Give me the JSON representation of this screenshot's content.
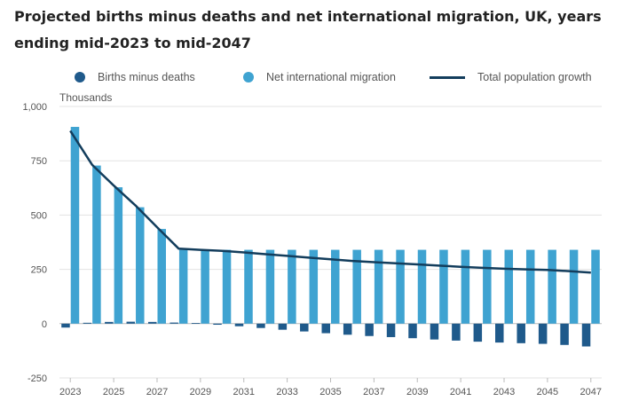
{
  "title": "Projected births minus deaths and net international migration, UK, years ending mid-2023 to mid-2047",
  "legend": {
    "births": "Births minus deaths",
    "migration": "Net international migration",
    "total": "Total population growth"
  },
  "colors": {
    "births": "#1f5a8b",
    "migration": "#3fa3d1",
    "total": "#133d5c",
    "grid": "#e3e3e3",
    "zero": "#bbbbbb"
  },
  "chart_data": {
    "type": "bar",
    "ylabel": "Thousands",
    "ylim": [
      -250,
      1000
    ],
    "yticks": [
      -250,
      0,
      250,
      500,
      750,
      1000
    ],
    "ytick_labels": [
      "-250",
      "0",
      "250",
      "500",
      "750",
      "1,000"
    ],
    "x": [
      2023,
      2024,
      2025,
      2026,
      2027,
      2028,
      2029,
      2030,
      2031,
      2032,
      2033,
      2034,
      2035,
      2036,
      2037,
      2038,
      2039,
      2040,
      2041,
      2042,
      2043,
      2044,
      2045,
      2046,
      2047
    ],
    "xtick_labels": [
      "2023",
      "2025",
      "2027",
      "2029",
      "2031",
      "2033",
      "2035",
      "2037",
      "2039",
      "2041",
      "2043",
      "2045",
      "2047"
    ],
    "series": [
      {
        "name": "Births minus deaths",
        "type": "bar",
        "values": [
          -18,
          4,
          8,
          9,
          8,
          5,
          0,
          -5,
          -12,
          -20,
          -28,
          -36,
          -44,
          -51,
          -57,
          -62,
          -67,
          -73,
          -78,
          -83,
          -87,
          -90,
          -93,
          -98,
          -105
        ]
      },
      {
        "name": "Net international migration",
        "type": "bar",
        "values": [
          906,
          728,
          628,
          536,
          436,
          340,
          340,
          340,
          340,
          340,
          340,
          340,
          340,
          340,
          340,
          340,
          340,
          340,
          340,
          340,
          340,
          340,
          340,
          340,
          340
        ]
      },
      {
        "name": "Total population growth",
        "type": "line",
        "values": [
          888,
          732,
          636,
          545,
          444,
          345,
          340,
          335,
          328,
          320,
          312,
          304,
          296,
          289,
          283,
          278,
          273,
          267,
          262,
          257,
          253,
          250,
          247,
          242,
          235
        ]
      }
    ],
    "grid": true,
    "legend_position": "top"
  }
}
